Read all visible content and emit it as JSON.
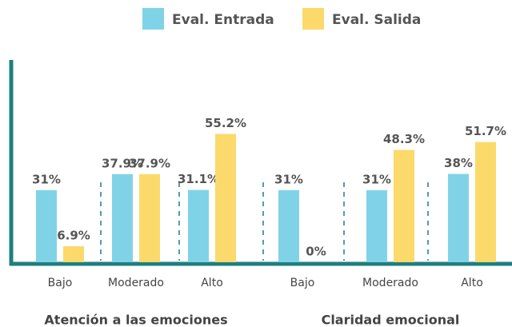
{
  "chart_data": {
    "type": "bar",
    "categories": [
      "Bajo",
      "Moderado",
      "Alto",
      "Bajo",
      "Moderado",
      "Alto"
    ],
    "group_labels": [
      "Atención a las emociones",
      "Claridad emocional"
    ],
    "series": [
      {
        "name": "Eval. Entrada",
        "color": "#80d3e7",
        "values": [
          31,
          37.9,
          31.1,
          31,
          31,
          38
        ],
        "value_labels": [
          "31%",
          "37.9%",
          "31.1%",
          "31%",
          "31%",
          "38%"
        ]
      },
      {
        "name": "Eval. Salida",
        "color": "#fcd96b",
        "values": [
          6.9,
          37.9,
          55.2,
          0,
          48.3,
          51.7
        ],
        "value_labels": [
          "6.9%",
          "37.9%",
          "55.2%",
          "0%",
          "48.3%",
          "51.7%"
        ]
      }
    ],
    "ylim": [
      0,
      87
    ],
    "legend": "top"
  }
}
